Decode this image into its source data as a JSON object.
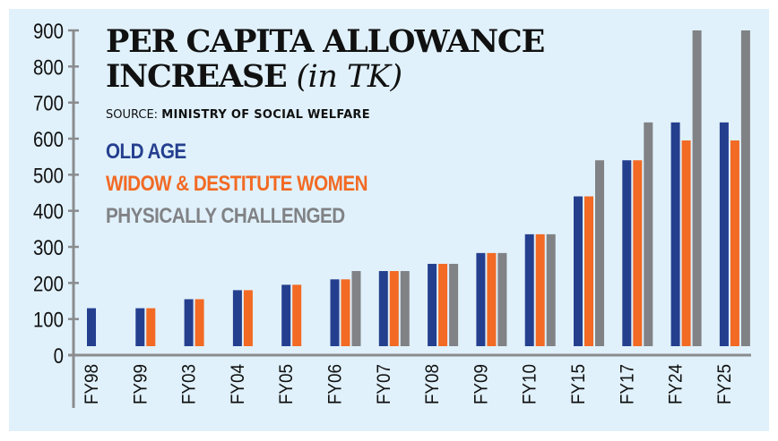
{
  "chart_data": {
    "type": "bar",
    "title": "PER CAPITA ALLOWANCE INCREASE",
    "title_line1": "PER CAPITA ALLOWANCE",
    "title_line2": "INCREASE",
    "title_unit": "(in TK)",
    "source_label": "SOURCE:",
    "source_value": "MINISTRY OF SOCIAL WELFARE",
    "xlabel": "",
    "ylabel": "",
    "ylim": [
      0,
      900
    ],
    "yticks": [
      0,
      100,
      200,
      300,
      400,
      500,
      600,
      700,
      800,
      900
    ],
    "ytick_labels": [
      "0",
      "100",
      "200",
      "300",
      "400",
      "500",
      "600",
      "700",
      "800",
      "900"
    ],
    "categories": [
      "FY98",
      "FY99",
      "FY03",
      "FY04",
      "FY05",
      "FY06",
      "FY07",
      "FY08",
      "FY09",
      "FY10",
      "FY15",
      "FY17",
      "FY24",
      "FY25"
    ],
    "legend_position": "top-left",
    "grid": false,
    "series": [
      {
        "name": "OLD AGE",
        "color": "#253f8f",
        "values": [
          130,
          130,
          155,
          180,
          195,
          210,
          233,
          253,
          283,
          335,
          440,
          540,
          645,
          645
        ]
      },
      {
        "name": "WIDOW & DESTITUTE WOMEN",
        "color": "#f26a24",
        "values": [
          null,
          130,
          155,
          180,
          195,
          210,
          233,
          253,
          283,
          335,
          440,
          540,
          595,
          595
        ]
      },
      {
        "name": "PHYSICALLY CHALLENGED",
        "color": "#808285",
        "values": [
          null,
          null,
          null,
          null,
          null,
          233,
          233,
          253,
          283,
          335,
          540,
          645,
          900,
          900
        ]
      }
    ]
  },
  "colors": {
    "background": "#e0f1fb",
    "axis": "#8a8c8e",
    "text": "#111111"
  }
}
